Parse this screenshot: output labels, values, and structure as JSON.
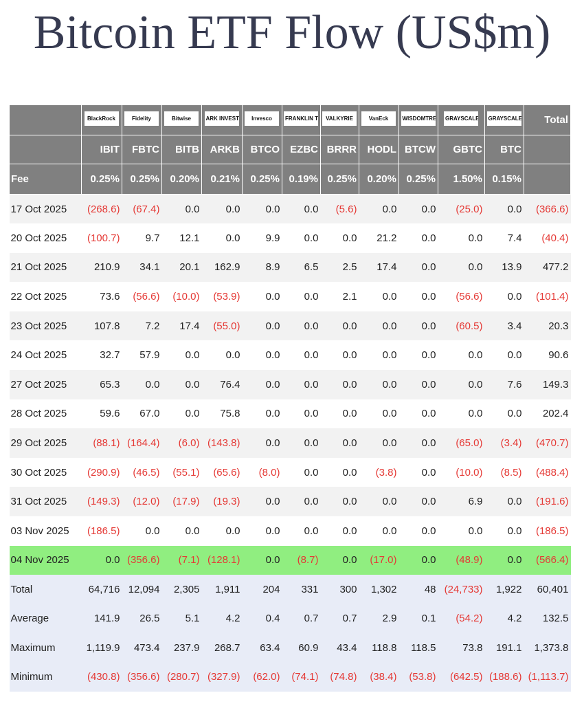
{
  "title": "Bitcoin ETF Flow (US$m)",
  "logos": [
    "BlackRock",
    "Fidelity",
    "Bitwise",
    "ARK INVEST",
    "Invesco",
    "FRANKLIN TEMPLETON",
    "VALKYRIE",
    "VanEck",
    "WISDOMTREE",
    "GRAYSCALE",
    "GRAYSCALE"
  ],
  "total_header": "Total",
  "tickers": [
    "IBIT",
    "FBTC",
    "BITB",
    "ARKB",
    "BTCO",
    "EZBC",
    "BRRR",
    "HODL",
    "BTCW",
    "GBTC",
    "BTC"
  ],
  "fee_label": "Fee",
  "fees": [
    "0.25%",
    "0.25%",
    "0.20%",
    "0.21%",
    "0.25%",
    "0.19%",
    "0.25%",
    "0.20%",
    "0.25%",
    "1.50%",
    "0.15%"
  ],
  "rows": [
    {
      "date": "17 Oct 2025",
      "values": [
        "(268.6)",
        "(67.4)",
        "0.0",
        "0.0",
        "0.0",
        "0.0",
        "(5.6)",
        "0.0",
        "0.0",
        "(25.0)",
        "0.0",
        "(366.6)"
      ]
    },
    {
      "date": "20 Oct 2025",
      "values": [
        "(100.7)",
        "9.7",
        "12.1",
        "0.0",
        "9.9",
        "0.0",
        "0.0",
        "21.2",
        "0.0",
        "0.0",
        "7.4",
        "(40.4)"
      ]
    },
    {
      "date": "21 Oct 2025",
      "values": [
        "210.9",
        "34.1",
        "20.1",
        "162.9",
        "8.9",
        "6.5",
        "2.5",
        "17.4",
        "0.0",
        "0.0",
        "13.9",
        "477.2"
      ]
    },
    {
      "date": "22 Oct 2025",
      "values": [
        "73.6",
        "(56.6)",
        "(10.0)",
        "(53.9)",
        "0.0",
        "0.0",
        "2.1",
        "0.0",
        "0.0",
        "(56.6)",
        "0.0",
        "(101.4)"
      ]
    },
    {
      "date": "23 Oct 2025",
      "values": [
        "107.8",
        "7.2",
        "17.4",
        "(55.0)",
        "0.0",
        "0.0",
        "0.0",
        "0.0",
        "0.0",
        "(60.5)",
        "3.4",
        "20.3"
      ]
    },
    {
      "date": "24 Oct 2025",
      "values": [
        "32.7",
        "57.9",
        "0.0",
        "0.0",
        "0.0",
        "0.0",
        "0.0",
        "0.0",
        "0.0",
        "0.0",
        "0.0",
        "90.6"
      ]
    },
    {
      "date": "27 Oct 2025",
      "values": [
        "65.3",
        "0.0",
        "0.0",
        "76.4",
        "0.0",
        "0.0",
        "0.0",
        "0.0",
        "0.0",
        "0.0",
        "7.6",
        "149.3"
      ]
    },
    {
      "date": "28 Oct 2025",
      "values": [
        "59.6",
        "67.0",
        "0.0",
        "75.8",
        "0.0",
        "0.0",
        "0.0",
        "0.0",
        "0.0",
        "0.0",
        "0.0",
        "202.4"
      ]
    },
    {
      "date": "29 Oct 2025",
      "values": [
        "(88.1)",
        "(164.4)",
        "(6.0)",
        "(143.8)",
        "0.0",
        "0.0",
        "0.0",
        "0.0",
        "0.0",
        "(65.0)",
        "(3.4)",
        "(470.7)"
      ]
    },
    {
      "date": "30 Oct 2025",
      "values": [
        "(290.9)",
        "(46.5)",
        "(55.1)",
        "(65.6)",
        "(8.0)",
        "0.0",
        "0.0",
        "(3.8)",
        "0.0",
        "(10.0)",
        "(8.5)",
        "(488.4)"
      ]
    },
    {
      "date": "31 Oct 2025",
      "values": [
        "(149.3)",
        "(12.0)",
        "(17.9)",
        "(19.3)",
        "0.0",
        "0.0",
        "0.0",
        "0.0",
        "0.0",
        "6.9",
        "0.0",
        "(191.6)"
      ]
    },
    {
      "date": "03 Nov 2025",
      "values": [
        "(186.5)",
        "0.0",
        "0.0",
        "0.0",
        "0.0",
        "0.0",
        "0.0",
        "0.0",
        "0.0",
        "0.0",
        "0.0",
        "(186.5)"
      ]
    },
    {
      "date": "04 Nov 2025",
      "values": [
        "0.0",
        "(356.6)",
        "(7.1)",
        "(128.1)",
        "0.0",
        "(8.7)",
        "0.0",
        "(17.0)",
        "0.0",
        "(48.9)",
        "0.0",
        "(566.4)"
      ]
    }
  ],
  "summary": [
    {
      "label": "Total",
      "values": [
        "64,716",
        "12,094",
        "2,305",
        "1,911",
        "204",
        "331",
        "300",
        "1,302",
        "48",
        "(24,733)",
        "1,922",
        "60,401"
      ]
    },
    {
      "label": "Average",
      "values": [
        "141.9",
        "26.5",
        "5.1",
        "4.2",
        "0.4",
        "0.7",
        "0.7",
        "2.9",
        "0.1",
        "(54.2)",
        "4.2",
        "132.5"
      ]
    },
    {
      "label": "Maximum",
      "values": [
        "1,119.9",
        "473.4",
        "237.9",
        "268.7",
        "63.4",
        "60.9",
        "43.4",
        "118.8",
        "118.5",
        "73.8",
        "191.1",
        "1,373.8"
      ]
    },
    {
      "label": "Minimum",
      "values": [
        "(430.8)",
        "(356.6)",
        "(280.7)",
        "(327.9)",
        "(62.0)",
        "(74.1)",
        "(74.8)",
        "(38.4)",
        "(53.8)",
        "(642.5)",
        "(188.6)",
        "(1,113.7)"
      ]
    }
  ]
}
